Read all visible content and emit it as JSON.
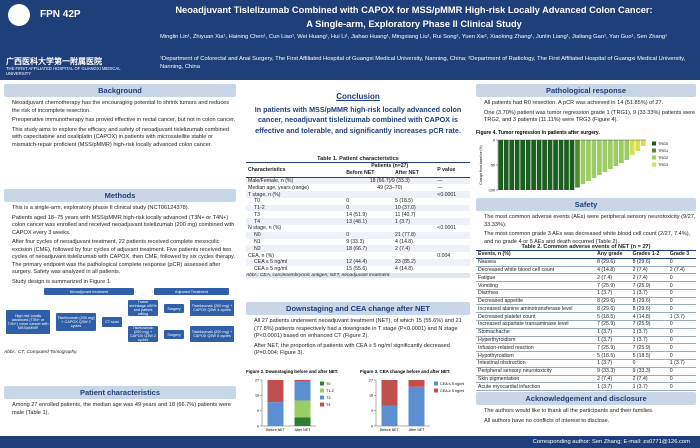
{
  "header": {
    "code": "FPN 42P",
    "institution_cn": "广西医科大学第一附属医院",
    "institution_en": "THE FIRST AFFILIATED HOSPITAL OF GUANGXI MEDICAL UNIVERSITY",
    "title": "Neoadjuvant Tislelizumab Combined with CAPOX for MSS/pMMR High-risk Locally Advanced Colon Cancer:",
    "subtitle": "A Single-arm, Exploratory Phase II Clinical Study",
    "authors": "Minglin Lin¹, Zhiyuan Xia¹, Haining Chen¹, Cun Liao¹, Wei Huang¹, Hui Li¹, Jiahao Huang¹, Mingxiang Liu¹, Rui Song¹, Yuen Xie², Xiaolong Zhang¹, Junlin Liang¹, Jialiang Gan¹, Yan Guo¹, Sen Zhang¹",
    "affiliations": "¹Department of Colorectal and Anal Surgery, The First Affiliated Hospital of Guangxi Medical University, Nanning, China; ²Department of Radiology, The First Affiliated Hospital of Guangxi Medical University, Nanning, China"
  },
  "background": {
    "heading": "Background",
    "bullets": [
      "Neoadjuvant chemotherapy has the encouraging potential to shrink tumors and reduces the risk of incomplete resection.",
      "Preoperative immunotherapy has proved effective in rectal cancer, but not in colon cancer.",
      "This study aims to explore the efficacy and safety of neoadjuvant tislelizumab combined with capecitabine and oxaliplatin (CAPOX) in patients with microsatellite stable or mismatch-repair proficient (MSS/pMMR) high-risk locally advanced colon cancer."
    ]
  },
  "methods": {
    "heading": "Methods",
    "bullets": [
      "This is a single-arm, exploratory phase II clinical study (NCT06124378).",
      "Patients aged 18–75 years with MSS/pMMR high-risk locally advanced (T3N+ or T4N+) colon cancer was enrolled and received neoadjuvant tislelizumab (200 mg) combined with CAPOX every 3 weeks.",
      "After four cycles of neoadjuvant treatment, 22 patients received complete mesocolic excision (CME), followed by four cycles of adjuvant treatment. Five patients received two cycles of neoadjuvant tislelizumab with CAPOX, then CME, followed by six cycles therapy. The primary endpoint was the pathological complete response (pCR) assessed after surgery. Safety was analyzed in all patients.",
      "Study design is summarized in Figure 1."
    ]
  },
  "flow": {
    "neo": "Neoadjuvant treatment",
    "adj": "Adjuvant Treatment",
    "patients": "High risk locally advanced (T3N+ or T4N+) colon cancer with MSS/pMMR",
    "arm_a": "Tislelizumab (200 mg) + CAPOX Q3W 2 cycles",
    "ct": "CT scan",
    "shrink": "Tumor shrinkage ≥50% and patient willing",
    "surgery_a": "Surgery",
    "arm_b": "Tislelizumab (200 mg) + CAPOX Q3W 2 cycles",
    "surgery_b": "Surgery",
    "adj_a": "Tislelizumab (200 mg) + CAPOX Q3W 4 cycles",
    "adj_b": "Tislelizumab (200 mg) + CAPOX Q3W 6 cycles",
    "abbr": "Abbr.: CT, Computed Tomography."
  },
  "patients": {
    "heading": "Patient characteristics",
    "bullets": [
      "Among 27 enrolled patients, the median age was 49 years and 18 (66.7%) patients were male (Table 1)."
    ]
  },
  "conclusion": {
    "heading": "Conclusion",
    "text": "In patients with MSS/pMMR high-risk locally advanced colon cancer, neoadjuvant tislelizumab combined with CAPOX is effective and tolerable, and significantly increases pCR rate."
  },
  "table1": {
    "title": "Table 1. Patient characteristics",
    "group": "Patients (n=27)",
    "columns": [
      "Characteristics",
      "Before NET",
      "After NET",
      "P value"
    ],
    "rows": [
      [
        "Male/Female, n (%)",
        "18 (66.7)/9 (33.3)",
        "",
        "—"
      ],
      [
        "Median age, years (range)",
        "49 (23–70)",
        "",
        "—"
      ],
      [
        "T stage, n (%)",
        "",
        "",
        "<0.0001"
      ],
      [
        "T0",
        "0",
        "5 (18.5)",
        ""
      ],
      [
        "T1-2",
        "0",
        "10 (37.0)",
        ""
      ],
      [
        "T3",
        "14 (51.9)",
        "11 (40.7)",
        ""
      ],
      [
        "T4",
        "13 (48.1)",
        "1 (3.7)",
        ""
      ],
      [
        "N stage, n (%)",
        "",
        "",
        "<0.0001"
      ],
      [
        "N0",
        "0",
        "21 (77.8)",
        ""
      ],
      [
        "N1",
        "9 (33.3)",
        "4 (14.8)",
        ""
      ],
      [
        "N2",
        "18 (66.7)",
        "2 (7.4)",
        ""
      ],
      [
        "CEA, n (%)",
        "",
        "",
        "0.004"
      ],
      [
        "CEA ≤ 5 ng/ml",
        "12 (44.4)",
        "23 (85.2)",
        ""
      ],
      [
        "CEA ≥ 5 ng/ml",
        "15 (55.6)",
        "4 (14.8)",
        ""
      ]
    ],
    "abbr": "Abbr.: CEA, carcinoembryonic antigen; NET, neoadjuvant treatment."
  },
  "downstaging": {
    "heading": "Downstaging and CEA change after NET",
    "bullets": [
      "All 27 patients underwent neoadjuvant treatment (NET), of which 15 (55.6%) and 21 (77.8%) patients respectively had a downgrade in T stage (P<0.0001) and N stage (P<0.0001) based on enhanced CT (Figure 2).",
      "After NET, the proportion of patients with CEA ≥ 5 ng/ml significantly decreased (P=0.004; Figure 3)."
    ]
  },
  "chart_data": [
    {
      "type": "stacked-bar",
      "title": "Figure 2. Downstaging before and after NET.",
      "categories": [
        "Before NET",
        "After NET"
      ],
      "ylim": [
        0,
        27
      ],
      "yticks": [
        0,
        9,
        18,
        27
      ],
      "series": [
        {
          "name": "T0",
          "color": "#2e7d32",
          "values": [
            0,
            5
          ]
        },
        {
          "name": "T1-2",
          "color": "#9ccc65",
          "values": [
            0,
            10
          ]
        },
        {
          "name": "T3",
          "color": "#5b8fd1",
          "values": [
            14,
            11
          ]
        },
        {
          "name": "T4",
          "color": "#c0504d",
          "values": [
            13,
            1
          ]
        }
      ]
    },
    {
      "type": "stacked-bar",
      "title": "Figure 3. CEA change before and after NET.",
      "categories": [
        "Before NET",
        "After NET"
      ],
      "ylim": [
        0,
        27
      ],
      "yticks": [
        0,
        9,
        18,
        27
      ],
      "series": [
        {
          "name": "CEA ≤ 5 ng/ml",
          "color": "#5b8fd1",
          "values": [
            12,
            23
          ]
        },
        {
          "name": "CEA ≥ 5 ng/ml",
          "color": "#c0504d",
          "values": [
            15,
            4
          ]
        }
      ]
    },
    {
      "type": "waterfall",
      "title": "Figure 4. Tumor regression in patients after surgery.",
      "ylabel": "Change from baseline (%)",
      "ylim": [
        -100,
        0
      ],
      "yticks": [
        -100,
        -50,
        0
      ],
      "series": [
        {
          "name": "TRG0",
          "color": "#1b5e20",
          "values": [
            -100,
            -100,
            -100,
            -100,
            -100,
            -100,
            -100,
            -100,
            -100,
            -100,
            -100,
            -100,
            -100,
            -100
          ]
        },
        {
          "name": "TRG1",
          "color": "#558b2f",
          "values": [
            -95
          ]
        },
        {
          "name": "TRG2",
          "color": "#9ccc65",
          "values": [
            -88,
            -82,
            -76,
            -70,
            -64,
            -58,
            -52,
            -46,
            -40
          ]
        },
        {
          "name": "TRG3",
          "color": "#d4e157",
          "values": [
            -30,
            -22,
            -12
          ]
        }
      ]
    }
  ],
  "pathology": {
    "heading": "Pathological response",
    "bullets": [
      "All patients had R0 resection. A pCR was achieved in 14 (51.85%) of 27.",
      "One (3.70%) patient was tumor regression grade 1 (TRG1), 9 (33.33%) patients were TRG2, and 3 patients (11.11%) were TRG3 (Figure 4)."
    ]
  },
  "safety": {
    "heading": "Safety",
    "bullets": [
      "The most common adverse events (AEs) were peripheral sensory neurotoxicity (9/27, 33.33%).",
      "The most common grade 3 AEs was decreased white blood cell count (2/27, 7.4%), and no grade 4 or 5 AEs and death occurred (Table 2)."
    ]
  },
  "table2": {
    "title": "Table 2. Common adverse events of NET (n = 27)",
    "columns": [
      "Events, n (%)",
      "Any grade",
      "Grades 1-2",
      "Grade 3"
    ],
    "rows": [
      [
        "Nausea",
        "8 (29.6)",
        "8 (29.6)",
        "0"
      ],
      [
        "Decreased white blood cell count",
        "4 (14.8)",
        "2 (7.4)",
        "2 (7.4)"
      ],
      [
        "Fatigue",
        "2 (7.4)",
        "2 (7.4)",
        "0"
      ],
      [
        "Vomiting",
        "7 (25.9)",
        "7 (25.9)",
        "0"
      ],
      [
        "Diarrhea",
        "1 (3.7)",
        "1 (3.7)",
        "0"
      ],
      [
        "Decreased appetite",
        "8 (29.6)",
        "8 (29.6)",
        "0"
      ],
      [
        "Increased alanine aminotransferase level",
        "8 (29.6)",
        "8 (29.6)",
        "0"
      ],
      [
        "Decreased platelet count",
        "5 (18.5)",
        "4 (14.8)",
        "1 (3.7)"
      ],
      [
        "Increased aspartate transaminase level",
        "7 (25.9)",
        "7 (25.9)",
        "0"
      ],
      [
        "Stomachache",
        "1 (3.7)",
        "1 (3.7)",
        "0"
      ],
      [
        "Hyperthyroidism",
        "1 (3.7)",
        "1 (3.7)",
        "0"
      ],
      [
        "Infusion-related reaction",
        "7 (25.9)",
        "7 (25.9)",
        "0"
      ],
      [
        "Hypothyroidism",
        "5 (18.5)",
        "5 (18.5)",
        "0"
      ],
      [
        "Intestinal obstruction",
        "1 (3.7)",
        "0",
        "1 (3.7)"
      ],
      [
        "Peripheral sensory neurotoxicity",
        "9 (33.3)",
        "9 (33.3)",
        "0"
      ],
      [
        "Skin pigmentation",
        "2 (7.4)",
        "2 (7.4)",
        "0"
      ],
      [
        "Acute myocardial infarction",
        "1 (3.7)",
        "1 (3.7)",
        "0"
      ]
    ]
  },
  "acknowledgement": {
    "heading": "Acknowledgement and disclosure",
    "bullets": [
      "The authors would like to thank all the participants and their families.",
      "All authors have no conflicts of interest to disclose."
    ]
  },
  "footer": {
    "contact": "Corresponding author: Sen Zhang; E-mail: zs0771@126.com"
  }
}
